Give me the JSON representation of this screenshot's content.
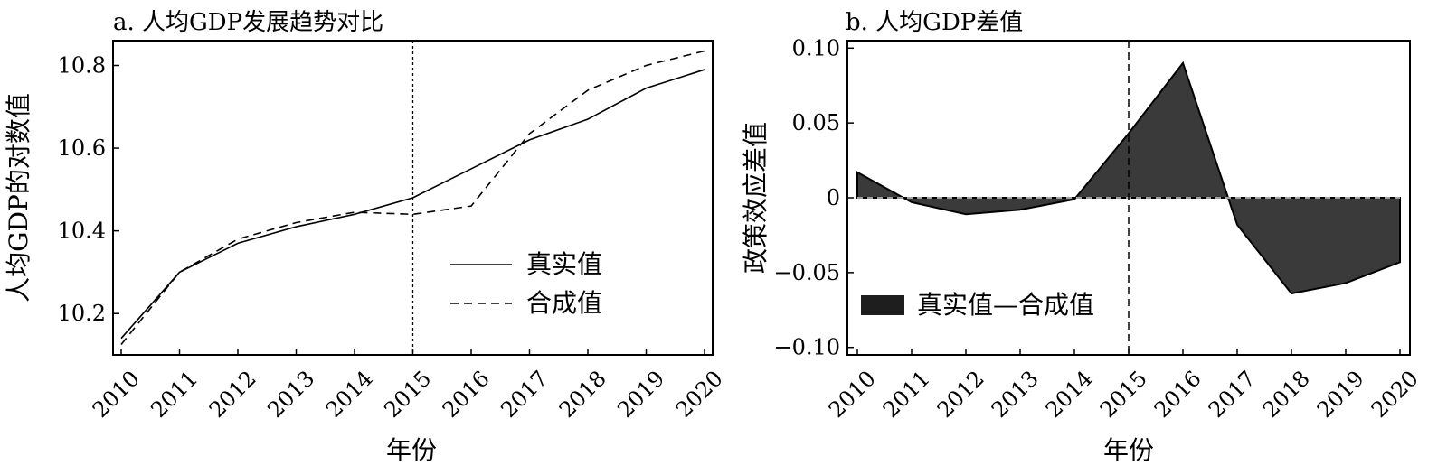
{
  "chart_data": [
    {
      "type": "line",
      "title": "a. 人均GDP发展趋势对比",
      "xlabel": "年份",
      "ylabel": "人均GDP的对数值",
      "x": [
        2010,
        2011,
        2012,
        2013,
        2014,
        2015,
        2016,
        2017,
        2018,
        2019,
        2020
      ],
      "xlim": [
        2010,
        2020
      ],
      "ylim": [
        10.1,
        10.86
      ],
      "yticks": [
        "10.2",
        "10.4",
        "10.6",
        "10.8"
      ],
      "ytick_values": [
        10.2,
        10.4,
        10.6,
        10.8
      ],
      "vline": 2015,
      "legend_position": "lower-right",
      "series": [
        {
          "name": "真实值",
          "style": "solid",
          "values": [
            10.14,
            10.3,
            10.37,
            10.41,
            10.44,
            10.48,
            10.55,
            10.62,
            10.67,
            10.745,
            10.79
          ]
        },
        {
          "name": "合成值",
          "style": "dashed",
          "values": [
            10.125,
            10.3,
            10.38,
            10.42,
            10.445,
            10.44,
            10.46,
            10.635,
            10.74,
            10.8,
            10.835
          ]
        }
      ]
    },
    {
      "type": "area",
      "title": "b. 人均GDP差值",
      "xlabel": "年份",
      "ylabel": "政策效应差值",
      "x": [
        2010,
        2011,
        2012,
        2013,
        2014,
        2015,
        2016,
        2017,
        2018,
        2019,
        2020
      ],
      "xlim": [
        2010,
        2020
      ],
      "ylim": [
        -0.105,
        0.105
      ],
      "yticks": [
        "−0.10",
        "−0.05",
        "0",
        "0.05",
        "0.10"
      ],
      "ytick_values": [
        -0.1,
        -0.05,
        0,
        0.05,
        0.1
      ],
      "vline": 2015,
      "legend_position": "lower-left",
      "series": [
        {
          "name": "真实值—合成值",
          "color": "#3a3a3a",
          "values": [
            0.017,
            -0.003,
            -0.011,
            -0.008,
            -0.001,
            0.043,
            0.09,
            -0.018,
            -0.064,
            -0.057,
            -0.043
          ]
        }
      ]
    }
  ]
}
